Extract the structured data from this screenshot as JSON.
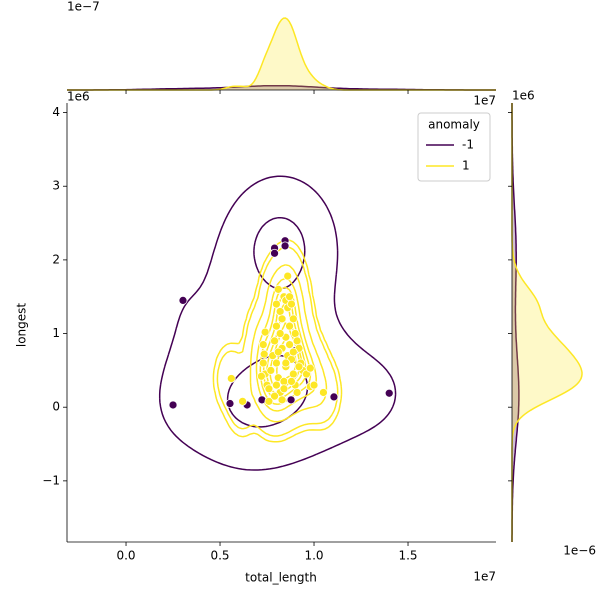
{
  "chart_data": {
    "type": "jointplot",
    "x_label": "total_length",
    "y_label": "longest",
    "legend_title": "anomaly",
    "legend_position": "upper right",
    "offset_texts": {
      "main_x": "1e7",
      "main_y": "1e6",
      "top_x": "1e7",
      "top_y": "1e−7",
      "right_x": "1e−6",
      "right_y": "1e6"
    },
    "xlim": [
      -3140000,
      19680000
    ],
    "ylim": [
      -1830000,
      4130000
    ],
    "xticks": [
      {
        "value": 0,
        "label": "0.0"
      },
      {
        "value": 5000000,
        "label": "0.5"
      },
      {
        "value": 10000000,
        "label": "1.0"
      },
      {
        "value": 15000000,
        "label": "1.5"
      }
    ],
    "yticks": [
      {
        "value": -1000000,
        "label": "−1"
      },
      {
        "value": 0,
        "label": "0"
      },
      {
        "value": 1000000,
        "label": "1"
      },
      {
        "value": 2000000,
        "label": "2"
      },
      {
        "value": 3000000,
        "label": "3"
      },
      {
        "value": 4000000,
        "label": "4"
      }
    ],
    "series": [
      {
        "name": "-1",
        "color": "#440154",
        "x": [
          2500000,
          3030000,
          5530000,
          6440000,
          7230000,
          7900000,
          7900000,
          8460000,
          8460000,
          8780000,
          11060000,
          14000000,
          9000000
        ],
        "y": [
          30000,
          1450000,
          50000,
          30000,
          100000,
          2160000,
          2090000,
          2260000,
          2190000,
          100000,
          140000,
          190000,
          770000
        ]
      },
      {
        "name": "1",
        "color": "#fde725",
        "x": [
          7400000,
          7300000,
          7350000,
          7300000,
          7400000,
          7200000,
          7500000,
          7600000,
          7700000,
          7800000,
          7900000,
          8000000,
          8000000,
          8100000,
          8200000,
          8300000,
          8400000,
          8500000,
          8600000,
          8700000,
          8800000,
          8900000,
          9000000,
          9100000,
          9200000,
          9300000,
          9400000,
          9600000,
          9800000,
          8000000,
          8100000,
          8200000,
          8300000,
          8400000,
          8500000,
          8600000,
          8700000,
          8800000,
          8900000,
          9000000,
          9100000,
          8500000,
          8300000,
          8200000,
          8700000,
          8400000,
          8900000,
          9200000,
          8000000,
          7900000,
          7600000,
          8600000,
          5600000,
          6200000,
          10000000,
          10500000,
          9800000,
          8500000,
          8100000,
          8800000
        ],
        "y": [
          1020000,
          850000,
          720000,
          600000,
          450000,
          420000,
          300000,
          250000,
          500000,
          700000,
          900000,
          1100000,
          1400000,
          1600000,
          1300000,
          1200000,
          1500000,
          1450000,
          1350000,
          1500000,
          1400000,
          1200000,
          1000000,
          900000,
          800000,
          600000,
          500000,
          450000,
          280000,
          600000,
          400000,
          200000,
          100000,
          350000,
          550000,
          700000,
          850000,
          650000,
          450000,
          300000,
          200000,
          950000,
          800000,
          1000000,
          1100000,
          250000,
          750000,
          550000,
          300000,
          150000,
          80000,
          1780000,
          390000,
          80000,
          300000,
          200000,
          530000,
          600000,
          750000,
          350000
        ]
      }
    ]
  }
}
